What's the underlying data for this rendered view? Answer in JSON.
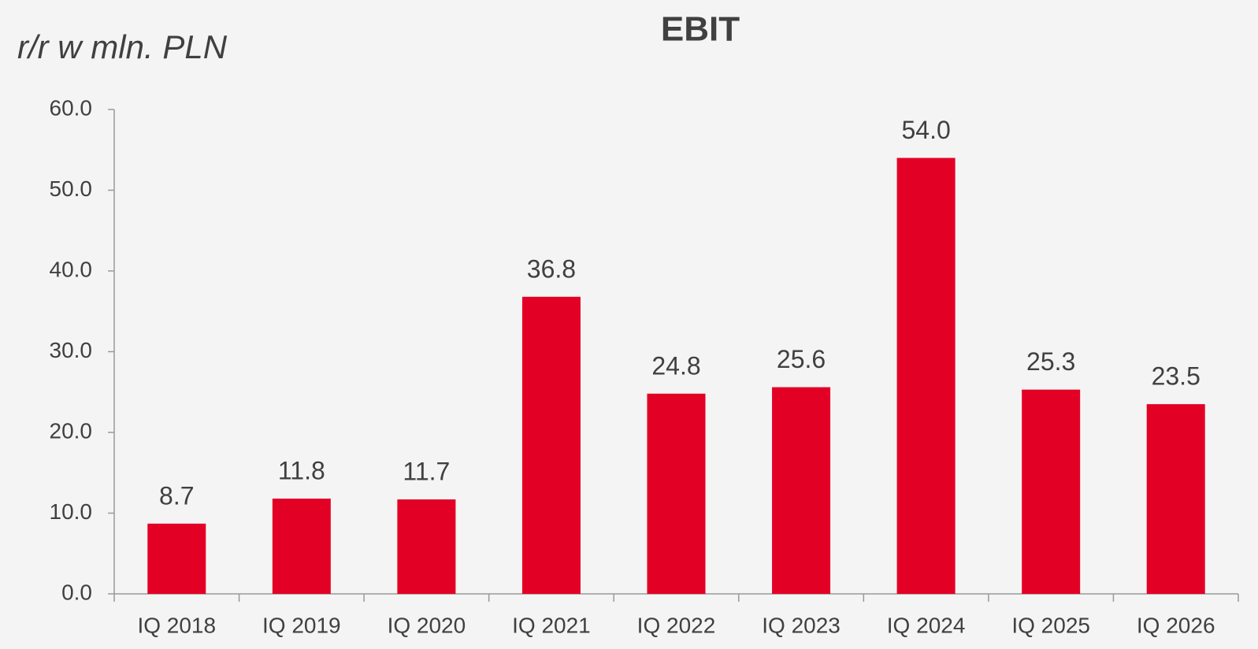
{
  "chart_data": {
    "type": "bar",
    "title": "EBIT",
    "subtitle": "r/r w mln. PLN",
    "categories": [
      "IQ 2018",
      "IQ 2019",
      "IQ 2020",
      "IQ 2021",
      "IQ 2022",
      "IQ 2023",
      "IQ 2024",
      "IQ 2025",
      "IQ 2026"
    ],
    "values": [
      8.7,
      11.8,
      11.7,
      36.8,
      24.8,
      25.6,
      54,
      25.3,
      23.5
    ],
    "value_labels": [
      "8.7",
      "11.8",
      "11.7",
      "36.8",
      "24.8",
      "25.6",
      "54.0",
      "25.3",
      "23.5"
    ],
    "color": "#e30025",
    "ylim": [
      0,
      60
    ],
    "yticks": [
      {
        "value": 0,
        "label": "0.0"
      },
      {
        "value": 10,
        "label": "10.0"
      },
      {
        "value": 20,
        "label": "20.0"
      },
      {
        "value": 30,
        "label": "30.0"
      },
      {
        "value": 40,
        "label": "40.0"
      },
      {
        "value": 50,
        "label": "50.0"
      },
      {
        "value": 60,
        "label": "60.0"
      }
    ],
    "grid": false
  }
}
